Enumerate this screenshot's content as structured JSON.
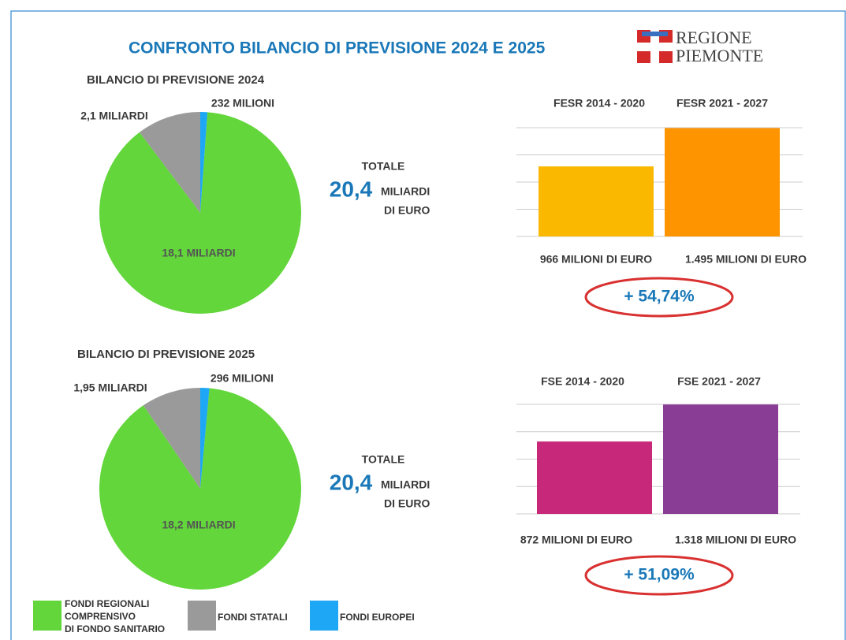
{
  "header": {
    "title": "CONFRONTO BILANCIO DI PREVISIONE 2024 E 2025",
    "logo": [
      "REGIONE",
      "PIEMONTE"
    ]
  },
  "chart_data": [
    {
      "type": "pie",
      "title": "BILANCIO DI PREVISIONE 2024",
      "categories": [
        "FONDI REGIONALI\nCOMPRENSIVO\nDI FONDO SANITARIO",
        "FONDI STATALI",
        "FONDI EUROPEI"
      ],
      "values": [
        18.1,
        2.1,
        0.232
      ],
      "value_labels": [
        "18,1 MILIARDI",
        "2,1 MILIARDI",
        "232 MILIONI"
      ],
      "colors": [
        "#62d63a",
        "#9a9a9a",
        "#1ea7f5"
      ],
      "total_caption": "TOTALE",
      "total": {
        "value": 20.4,
        "label": "20,4"
      },
      "total_unit": "MILIARDI",
      "total_unit2": "DI EURO"
    },
    {
      "type": "bar",
      "categories": [
        "FESR 2014 - 2020",
        "FESR 2021 - 2027"
      ],
      "values": [
        966,
        1495
      ],
      "value_labels": [
        "966 MILIONI DI EURO",
        "1.495 MILIONI DI EURO"
      ],
      "colors": [
        "#fbb800",
        "#fd9400"
      ],
      "ylim": [
        0,
        1500
      ],
      "yticks": [
        0,
        375,
        750,
        1125,
        1500
      ],
      "grid": true,
      "change": {
        "value": 54.74,
        "label": "+ 54,74%"
      }
    },
    {
      "type": "pie",
      "title": "BILANCIO DI PREVISIONE 2025",
      "categories": [
        "FONDI REGIONALI\nCOMPRENSIVO\nDI FONDO SANITARIO",
        "FONDI STATALI",
        "FONDI EUROPEI"
      ],
      "values": [
        18.2,
        1.95,
        0.296
      ],
      "value_labels": [
        "18,2 MILIARDI",
        "1,95 MILIARDI",
        "296 MILIONI"
      ],
      "colors": [
        "#62d63a",
        "#9a9a9a",
        "#1ea7f5"
      ],
      "total_caption": "TOTALE",
      "total": {
        "value": 20.4,
        "label": "20,4"
      },
      "total_unit": "MILIARDI",
      "total_unit2": "DI EURO"
    },
    {
      "type": "bar",
      "categories": [
        "FSE 2014 - 2020",
        "FSE 2021 - 2027"
      ],
      "values": [
        872,
        1318
      ],
      "value_labels": [
        "872 MILIONI DI EURO",
        "1.318 MILIONI DI EURO"
      ],
      "colors": [
        "#c8287a",
        "#8a3d95"
      ],
      "ylim": [
        0,
        1320
      ],
      "yticks": [
        0,
        330,
        660,
        990,
        1320
      ],
      "grid": true,
      "change": {
        "value": 51.09,
        "label": "+ 51,09%"
      }
    }
  ]
}
